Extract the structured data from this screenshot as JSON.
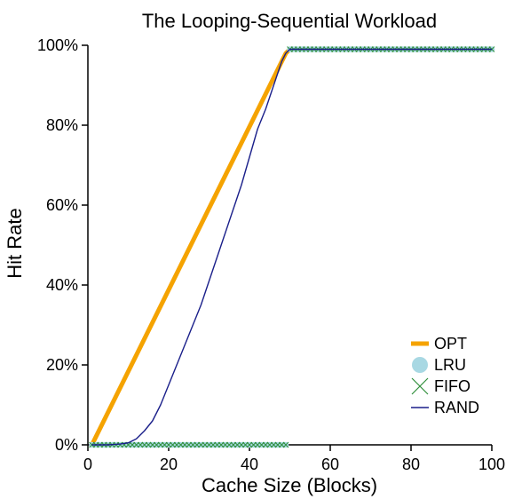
{
  "chart_data": {
    "type": "line",
    "title": "The Looping-Sequential Workload",
    "xlabel": "Cache Size (Blocks)",
    "ylabel": "Hit Rate",
    "xlim": [
      0,
      100
    ],
    "ylim": [
      0,
      100
    ],
    "x_ticks": [
      0,
      20,
      40,
      60,
      80,
      100
    ],
    "x_tick_labels": [
      "0",
      "20",
      "40",
      "60",
      "80",
      "100"
    ],
    "y_ticks": [
      0,
      20,
      40,
      60,
      80,
      100
    ],
    "y_tick_labels": [
      "0%",
      "20%",
      "40%",
      "60%",
      "80%",
      "100%"
    ],
    "grid": false,
    "legend_position": "bottom-right",
    "colors": {
      "OPT": "#f5a300",
      "LRU": "#a8d8e3",
      "FIFO": "#2f8f3a",
      "RAND": "#1a1f8a"
    },
    "series": [
      {
        "name": "OPT",
        "style": "thick-line",
        "x": [
          1,
          49,
          50,
          100
        ],
        "y": [
          0,
          98,
          99,
          99
        ]
      },
      {
        "name": "LRU",
        "style": "circle-markers",
        "x": [
          1,
          2,
          3,
          4,
          5,
          6,
          7,
          8,
          9,
          10,
          11,
          12,
          13,
          14,
          15,
          16,
          17,
          18,
          19,
          20,
          21,
          22,
          23,
          24,
          25,
          26,
          27,
          28,
          29,
          30,
          31,
          32,
          33,
          34,
          35,
          36,
          37,
          38,
          39,
          40,
          41,
          42,
          43,
          44,
          45,
          46,
          47,
          48,
          49,
          50,
          51,
          52,
          53,
          54,
          55,
          56,
          57,
          58,
          59,
          60,
          61,
          62,
          63,
          64,
          65,
          66,
          67,
          68,
          69,
          70,
          71,
          72,
          73,
          74,
          75,
          76,
          77,
          78,
          79,
          80,
          81,
          82,
          83,
          84,
          85,
          86,
          87,
          88,
          89,
          90,
          91,
          92,
          93,
          94,
          95,
          96,
          97,
          98,
          99,
          100
        ],
        "y": [
          0,
          0,
          0,
          0,
          0,
          0,
          0,
          0,
          0,
          0,
          0,
          0,
          0,
          0,
          0,
          0,
          0,
          0,
          0,
          0,
          0,
          0,
          0,
          0,
          0,
          0,
          0,
          0,
          0,
          0,
          0,
          0,
          0,
          0,
          0,
          0,
          0,
          0,
          0,
          0,
          0,
          0,
          0,
          0,
          0,
          0,
          0,
          0,
          0,
          99,
          99,
          99,
          99,
          99,
          99,
          99,
          99,
          99,
          99,
          99,
          99,
          99,
          99,
          99,
          99,
          99,
          99,
          99,
          99,
          99,
          99,
          99,
          99,
          99,
          99,
          99,
          99,
          99,
          99,
          99,
          99,
          99,
          99,
          99,
          99,
          99,
          99,
          99,
          99,
          99,
          99,
          99,
          99,
          99,
          99,
          99,
          99,
          99,
          99,
          99
        ]
      },
      {
        "name": "FIFO",
        "style": "x-markers",
        "x": [
          1,
          2,
          3,
          4,
          5,
          6,
          7,
          8,
          9,
          10,
          11,
          12,
          13,
          14,
          15,
          16,
          17,
          18,
          19,
          20,
          21,
          22,
          23,
          24,
          25,
          26,
          27,
          28,
          29,
          30,
          31,
          32,
          33,
          34,
          35,
          36,
          37,
          38,
          39,
          40,
          41,
          42,
          43,
          44,
          45,
          46,
          47,
          48,
          49,
          50,
          51,
          52,
          53,
          54,
          55,
          56,
          57,
          58,
          59,
          60,
          61,
          62,
          63,
          64,
          65,
          66,
          67,
          68,
          69,
          70,
          71,
          72,
          73,
          74,
          75,
          76,
          77,
          78,
          79,
          80,
          81,
          82,
          83,
          84,
          85,
          86,
          87,
          88,
          89,
          90,
          91,
          92,
          93,
          94,
          95,
          96,
          97,
          98,
          99,
          100
        ],
        "y": [
          0,
          0,
          0,
          0,
          0,
          0,
          0,
          0,
          0,
          0,
          0,
          0,
          0,
          0,
          0,
          0,
          0,
          0,
          0,
          0,
          0,
          0,
          0,
          0,
          0,
          0,
          0,
          0,
          0,
          0,
          0,
          0,
          0,
          0,
          0,
          0,
          0,
          0,
          0,
          0,
          0,
          0,
          0,
          0,
          0,
          0,
          0,
          0,
          0,
          99,
          99,
          99,
          99,
          99,
          99,
          99,
          99,
          99,
          99,
          99,
          99,
          99,
          99,
          99,
          99,
          99,
          99,
          99,
          99,
          99,
          99,
          99,
          99,
          99,
          99,
          99,
          99,
          99,
          99,
          99,
          99,
          99,
          99,
          99,
          99,
          99,
          99,
          99,
          99,
          99,
          99,
          99,
          99,
          99,
          99,
          99,
          99,
          99,
          99,
          99
        ]
      },
      {
        "name": "RAND",
        "style": "thin-line",
        "x": [
          1,
          5,
          8,
          10,
          12,
          14,
          16,
          18,
          20,
          22,
          24,
          26,
          28,
          30,
          32,
          34,
          36,
          38,
          40,
          42,
          44,
          46,
          47,
          48,
          49,
          50,
          100
        ],
        "y": [
          0,
          0,
          0.2,
          0.5,
          1.5,
          3.5,
          6,
          10,
          15,
          20,
          25,
          30,
          35,
          41,
          47,
          53,
          59,
          65,
          72,
          79,
          84,
          90,
          93,
          96,
          98,
          99,
          99
        ]
      }
    ]
  }
}
